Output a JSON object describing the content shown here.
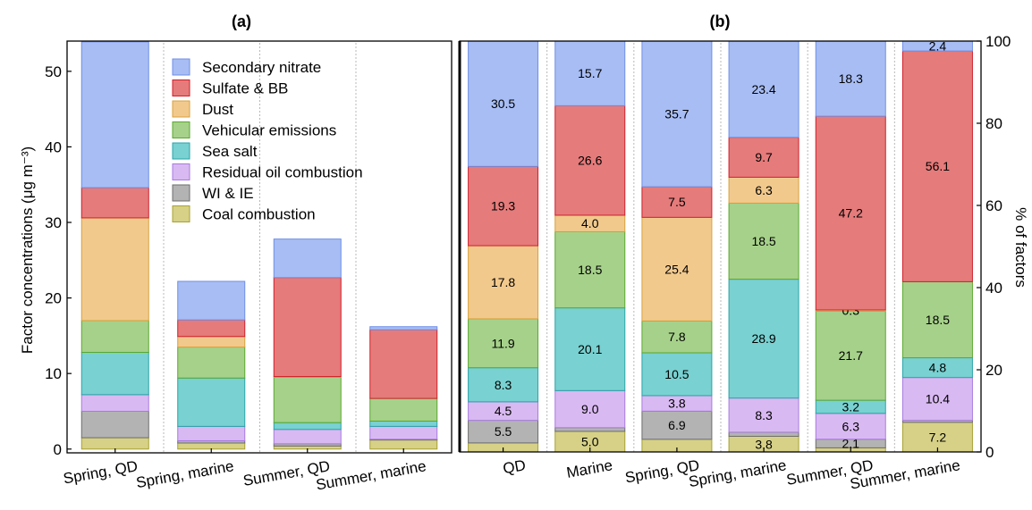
{
  "colors": {
    "Secondary nitrate": {
      "fill": "#a7bdf4",
      "stroke": "#6f8fe6"
    },
    "Sulfate & BB": {
      "fill": "#e57b7b",
      "stroke": "#d11f2a"
    },
    "Dust": {
      "fill": "#f2c98d",
      "stroke": "#d8a13c"
    },
    "Vehicular emissions": {
      "fill": "#a6d18a",
      "stroke": "#5aa82e"
    },
    "Sea salt": {
      "fill": "#79d1d1",
      "stroke": "#2aa4a8"
    },
    "Residual oil combustion": {
      "fill": "#d9b9f2",
      "stroke": "#a87be0"
    },
    "WI & IE": {
      "fill": "#b3b3b3",
      "stroke": "#6e6e6e"
    },
    "Coal combustion": {
      "fill": "#d6d187",
      "stroke": "#a8a132"
    }
  },
  "chart_data": [
    {
      "type": "bar",
      "stacked": true,
      "title": "(a)",
      "ylabel": "Factor concentrations (μg m⁻³)",
      "ylim": [
        0,
        54
      ],
      "yticks": [
        0,
        10,
        20,
        30,
        40,
        50
      ],
      "legend_position": "top-right",
      "categories": [
        "Spring, QD",
        "Spring, marine",
        "Summer, QD",
        "Summer, marine"
      ],
      "series": [
        {
          "name": "Coal combustion",
          "values": [
            1.5,
            0.8,
            0.4,
            1.2
          ]
        },
        {
          "name": "WI & IE",
          "values": [
            3.5,
            0.3,
            0.3,
            0.1
          ]
        },
        {
          "name": "Residual oil combustion",
          "values": [
            2.2,
            1.9,
            1.9,
            1.7
          ]
        },
        {
          "name": "Sea salt",
          "values": [
            5.6,
            6.4,
            0.9,
            0.7
          ]
        },
        {
          "name": "Vehicular emissions",
          "values": [
            4.2,
            4.1,
            6.0,
            3.0
          ]
        },
        {
          "name": "Dust",
          "values": [
            13.6,
            1.4,
            0.1,
            0.0
          ]
        },
        {
          "name": "Sulfate & BB",
          "values": [
            4.0,
            2.2,
            13.1,
            9.1
          ]
        },
        {
          "name": "Secondary nitrate",
          "values": [
            19.3,
            5.1,
            5.1,
            0.4
          ]
        }
      ]
    },
    {
      "type": "bar",
      "stacked": true,
      "title": "(b)",
      "ylabel": "% of factors",
      "ylim": [
        0,
        100
      ],
      "yticks": [
        0,
        20,
        40,
        60,
        80,
        100
      ],
      "categories": [
        "QD",
        "Marine",
        "Spring, QD",
        "Spring, marine",
        "Summer, QD",
        "Summer, marine"
      ],
      "series": [
        {
          "name": "Coal combustion",
          "values": [
            2.2,
            5.0,
            3.1,
            3.8,
            1.0,
            7.2
          ],
          "labels": [
            "",
            "5.0",
            "",
            "3.8",
            "",
            "7.2"
          ]
        },
        {
          "name": "WI & IE",
          "values": [
            5.5,
            0.9,
            6.9,
            1.0,
            2.1,
            0.5
          ],
          "labels": [
            "5.5",
            "",
            "6.9",
            "",
            "2.1",
            ""
          ]
        },
        {
          "name": "Residual oil combustion",
          "values": [
            4.5,
            9.0,
            3.8,
            8.3,
            6.3,
            10.4
          ],
          "labels": [
            "4.5",
            "9.0",
            "3.8",
            "8.3",
            "6.3",
            "10.4"
          ]
        },
        {
          "name": "Sea salt",
          "values": [
            8.3,
            20.1,
            10.5,
            28.9,
            3.2,
            4.8
          ],
          "labels": [
            "8.3",
            "20.1",
            "10.5",
            "28.9",
            "3.2",
            "4.8"
          ]
        },
        {
          "name": "Vehicular emissions",
          "values": [
            11.9,
            18.5,
            7.8,
            18.5,
            21.7,
            18.5
          ],
          "labels": [
            "11.9",
            "18.5",
            "7.8",
            "18.5",
            "21.7",
            "18.5"
          ]
        },
        {
          "name": "Dust",
          "values": [
            17.8,
            4.0,
            25.4,
            6.3,
            0.3,
            0.0
          ],
          "labels": [
            "17.8",
            "4.0",
            "25.4",
            "6.3",
            "0.3",
            ""
          ]
        },
        {
          "name": "Sulfate & BB",
          "values": [
            19.3,
            26.6,
            7.5,
            9.7,
            47.2,
            56.1
          ],
          "labels": [
            "19.3",
            "26.6",
            "7.5",
            "9.7",
            "47.2",
            "56.1"
          ]
        },
        {
          "name": "Secondary nitrate",
          "values": [
            30.5,
            15.7,
            35.7,
            23.4,
            18.3,
            2.4
          ],
          "labels": [
            "30.5",
            "15.7",
            "35.7",
            "23.4",
            "18.3",
            "2.4"
          ]
        }
      ]
    }
  ]
}
